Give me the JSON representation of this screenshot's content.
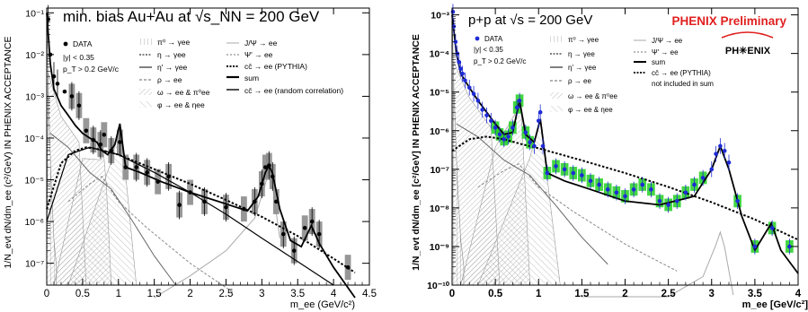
{
  "chart_data": [
    {
      "type": "scatter",
      "title": "min. bias Au+Au at √s_NN = 200 GeV",
      "xlabel": "m_ee (GeV/c²)",
      "ylabel": "1/N_evt dN/dm_ee (c²/GeV) IN PHENIX ACCEPTANCE",
      "log_y": true,
      "xlim": [
        0,
        4.5
      ],
      "ylim": [
        3e-08,
        0.13
      ],
      "x_ticks": [
        "0",
        "0.5",
        "1",
        "1.5",
        "2",
        "2.5",
        "3",
        "3.5",
        "4",
        "4.5"
      ],
      "y_ticks": [
        "10⁻⁷",
        "10⁻⁶",
        "10⁻⁵",
        "10⁻⁴",
        "10⁻³",
        "10⁻²",
        "10⁻¹"
      ],
      "legend_left": [
        "DATA",
        "|y| < 0.35",
        "p_T > 0.2 GeV/c"
      ],
      "legend_cocktail": [
        "π⁰ → γee",
        "η → γee",
        "η' → γee",
        "ρ → ee",
        "ω → ee & π⁰ee",
        "φ → ee & ηee"
      ],
      "legend_right": [
        "J/Ψ → ee",
        "Ψ' → ee",
        "cc̄ → ee (PYTHIA)",
        "sum",
        "cc̄ → ee (random correlation)"
      ],
      "series": [
        {
          "name": "DATA",
          "x": [
            0.02,
            0.05,
            0.1,
            0.15,
            0.25,
            0.35,
            0.45,
            0.55,
            0.65,
            0.75,
            0.8,
            0.9,
            1.02,
            1.1,
            1.25,
            1.4,
            1.55,
            1.7,
            1.85,
            2.0,
            2.2,
            2.5,
            2.75,
            2.9,
            3.0,
            3.05,
            3.1,
            3.15,
            3.2,
            3.3,
            3.45,
            3.6,
            3.7,
            3.8,
            4.2
          ],
          "y": [
            0.07,
            0.01,
            0.003,
            0.002,
            0.0013,
            0.001,
            0.0006,
            0.00015,
            9e-05,
            7e-05,
            0.00012,
            5e-05,
            8e-05,
            2e-05,
            2e-05,
            1.5e-05,
            9e-06,
            1.2e-05,
            2.5e-06,
            5e-06,
            3e-06,
            2.2e-06,
            2e-06,
            3e-06,
            8e-06,
            2e-05,
            2.2e-05,
            1.2e-05,
            3e-06,
            5e-07,
            2e-07,
            7e-07,
            1e-06,
            5e-07,
            8e-08
          ]
        },
        {
          "name": "sum",
          "x": [
            0.0,
            0.05,
            0.1,
            0.2,
            0.3,
            0.4,
            0.5,
            0.6,
            0.7,
            0.77,
            0.85,
            0.95,
            1.02,
            1.1,
            1.3,
            1.6,
            2.0,
            2.4,
            2.8,
            2.95,
            3.05,
            3.1,
            3.15,
            3.25,
            3.4,
            3.55,
            3.69,
            3.8,
            4.0,
            4.3
          ],
          "y": [
            0.1,
            0.006,
            0.0015,
            0.0006,
            0.00035,
            0.0002,
            0.00013,
            0.0001,
            8e-05,
            5e-05,
            4e-05,
            7e-05,
            0.00022,
            2e-05,
            1.5e-05,
            9e-06,
            5e-06,
            3e-06,
            1.8e-06,
            4e-06,
            1.5e-05,
            2.2e-05,
            1.4e-05,
            2e-06,
            3.5e-07,
            2.5e-07,
            8e-07,
            3e-07,
            8e-08,
            1.5e-08
          ]
        },
        {
          "name": "cc̄ → ee (PYTHIA)",
          "x": [
            0.0,
            0.2,
            0.4,
            0.55,
            0.7,
            1.0,
            1.5,
            2.0,
            2.5,
            3.0,
            3.5,
            4.0,
            4.3
          ],
          "y": [
            2e-06,
            2.5e-05,
            5e-05,
            6e-05,
            5.5e-05,
            4e-05,
            1.8e-05,
            8e-06,
            3.3e-06,
            1.3e-06,
            4.5e-07,
            1.3e-07,
            6e-08
          ]
        },
        {
          "name": "cc̄ → ee (random correlation)",
          "x": [
            0.0,
            0.3,
            0.6,
            1.0,
            1.5,
            2.0,
            2.5,
            3.0,
            3.5,
            4.0
          ],
          "y": [
            1e-06,
            4e-05,
            6e-05,
            4e-05,
            1.5e-05,
            5e-06,
            1.5e-06,
            4e-07,
            1.1e-07,
            3e-08
          ]
        }
      ]
    },
    {
      "type": "scatter",
      "title": "p+p at √s = 200 GeV",
      "badge": "PHENIX Preliminary",
      "logo_text": "PH✳ENIX",
      "xlabel": "m_ee [GeV/c²]",
      "ylabel": "1/N_evt dN/dm_ee [c²/GeV] IN PHENIX ACCEPTANCE",
      "log_y": true,
      "xlim": [
        0,
        4
      ],
      "ylim": [
        1e-10,
        0.0015
      ],
      "x_ticks": [
        "0",
        "0.5",
        "1",
        "1.5",
        "2",
        "2.5",
        "3",
        "3.5",
        "4"
      ],
      "y_ticks": [
        "10⁻¹⁰",
        "10⁻⁹",
        "10⁻⁸",
        "10⁻⁷",
        "10⁻⁶",
        "10⁻⁵",
        "10⁻⁴",
        "10⁻³"
      ],
      "legend_left": [
        "DATA",
        "|y| < 0.35",
        "p_T > 0.2 GeV/c"
      ],
      "legend_cocktail": [
        "π⁰ → γee",
        "η → γee",
        "η' → γee",
        "ρ → ee",
        "ω → ee & π⁰ee",
        "φ → ee & ηee"
      ],
      "legend_right": [
        "J/Ψ → ee",
        "Ψ' → ee",
        "sum",
        "cc̄ → ee (PYTHIA)",
        "not included in sum"
      ],
      "series": [
        {
          "name": "DATA",
          "x": [
            0.01,
            0.02,
            0.04,
            0.06,
            0.08,
            0.1,
            0.12,
            0.15,
            0.2,
            0.25,
            0.3,
            0.35,
            0.4,
            0.45,
            0.5,
            0.55,
            0.6,
            0.65,
            0.7,
            0.75,
            0.78,
            0.85,
            0.9,
            0.95,
            1.0,
            1.02,
            1.05,
            1.1,
            1.2,
            1.3,
            1.4,
            1.5,
            1.6,
            1.7,
            1.8,
            1.9,
            2.0,
            2.1,
            2.2,
            2.3,
            2.4,
            2.5,
            2.6,
            2.7,
            2.8,
            2.9,
            3.0,
            3.05,
            3.1,
            3.15,
            3.2,
            3.3,
            3.5,
            3.7,
            3.9
          ],
          "y": [
            0.0012,
            0.0005,
            0.0002,
            0.0001,
            6e-05,
            4e-05,
            3e-05,
            2e-05,
            1.3e-05,
            9e-06,
            6e-06,
            3.5e-06,
            2.5e-06,
            1.8e-06,
            1.2e-06,
            8e-07,
            6e-07,
            7e-07,
            1.2e-06,
            4e-06,
            6e-06,
            9e-07,
            5e-07,
            4e-07,
            1.8e-06,
            3e-06,
            4e-07,
            8e-08,
            1.2e-07,
            1e-07,
            8e-08,
            7e-08,
            5e-08,
            4e-08,
            3e-08,
            2.5e-08,
            2e-08,
            3e-08,
            4e-08,
            3e-08,
            1.5e-08,
            1.2e-08,
            1.5e-08,
            2.5e-08,
            4e-08,
            6e-08,
            1e-07,
            2.5e-07,
            4e-07,
            3e-07,
            1.5e-07,
            1.5e-08,
            1e-09,
            3e-09,
            1e-09
          ]
        },
        {
          "name": "sum",
          "x": [
            0.0,
            0.05,
            0.1,
            0.2,
            0.3,
            0.4,
            0.5,
            0.6,
            0.7,
            0.78,
            0.85,
            0.95,
            1.02,
            1.1,
            1.3,
            1.6,
            2.0,
            2.4,
            2.8,
            3.0,
            3.1,
            3.2,
            3.35,
            3.5,
            3.69,
            3.8,
            4.0
          ],
          "y": [
            0.001,
            0.0001,
            3e-05,
            1.3e-05,
            6e-06,
            3e-06,
            1.5e-06,
            8e-07,
            9e-07,
            6e-06,
            8e-07,
            5e-07,
            2e-06,
            8e-08,
            5e-08,
            3e-08,
            1.5e-08,
            1.2e-08,
            2e-08,
            1e-07,
            4e-07,
            1e-07,
            6e-09,
            8e-10,
            4e-09,
            8e-10,
            2e-10
          ]
        },
        {
          "name": "cc̄ → ee (PYTHIA)",
          "x": [
            0.0,
            0.2,
            0.4,
            0.6,
            0.8,
            1.0,
            1.5,
            2.0,
            2.5,
            3.0,
            3.5,
            4.0
          ],
          "y": [
            3e-07,
            6e-07,
            7e-07,
            6e-07,
            4.5e-07,
            3.5e-07,
            1.7e-07,
            8e-08,
            3.5e-08,
            1.4e-08,
            5e-09,
            1.5e-09
          ]
        }
      ]
    }
  ]
}
